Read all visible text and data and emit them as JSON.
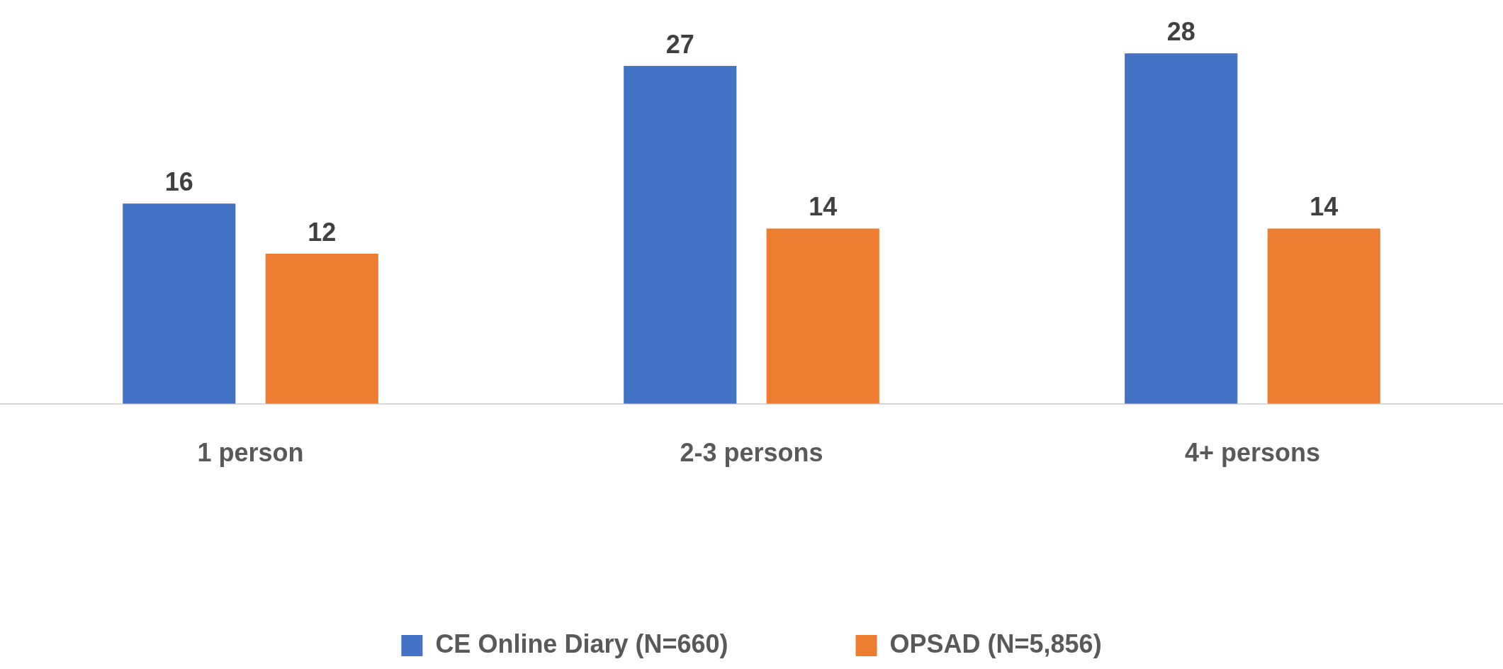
{
  "chart_data": {
    "type": "bar",
    "categories": [
      "1 person",
      "2-3 persons",
      "4+ persons"
    ],
    "series": [
      {
        "name": "CE Online Diary (N=660)",
        "color": "#4472c4",
        "values": [
          16,
          27,
          28
        ]
      },
      {
        "name": "OPSAD (N=5,856)",
        "color": "#ed7d31",
        "values": [
          12,
          14,
          14
        ]
      }
    ],
    "data_labels": true,
    "grid": false,
    "legend": "bottom",
    "tick_labels": "x"
  }
}
